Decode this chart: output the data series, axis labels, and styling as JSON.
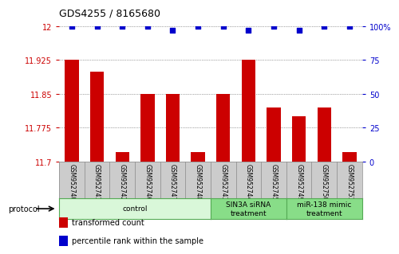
{
  "title": "GDS4255 / 8165680",
  "samples": [
    "GSM952740",
    "GSM952741",
    "GSM952742",
    "GSM952746",
    "GSM952747",
    "GSM952748",
    "GSM952743",
    "GSM952744",
    "GSM952745",
    "GSM952749",
    "GSM952750",
    "GSM952751"
  ],
  "transformed_counts": [
    11.925,
    11.9,
    11.72,
    11.85,
    11.85,
    11.72,
    11.85,
    11.925,
    11.82,
    11.8,
    11.82,
    11.72
  ],
  "percentile_ranks": [
    100,
    100,
    100,
    100,
    97,
    100,
    100,
    97,
    100,
    97,
    100,
    100
  ],
  "groups": [
    {
      "label": "control",
      "start": 0,
      "end": 6,
      "color": "#d9f7d9",
      "edge_color": "#55aa55"
    },
    {
      "label": "SIN3A siRNA\ntreatment",
      "start": 6,
      "end": 9,
      "color": "#88dd88",
      "edge_color": "#55aa55"
    },
    {
      "label": "miR-138 mimic\ntreatment",
      "start": 9,
      "end": 12,
      "color": "#88dd88",
      "edge_color": "#55aa55"
    }
  ],
  "ylim_left": [
    11.7,
    12.0
  ],
  "yticks_left": [
    11.7,
    11.775,
    11.85,
    11.925,
    12.0
  ],
  "yticklabels_left": [
    "11.7",
    "11.775",
    "11.85",
    "11.925",
    "12"
  ],
  "ylim_right": [
    0,
    100
  ],
  "yticks_right": [
    0,
    25,
    50,
    75,
    100
  ],
  "yticklabels_right": [
    "0",
    "25",
    "50",
    "75",
    "100%"
  ],
  "bar_color": "#cc0000",
  "dot_color": "#0000cc",
  "dot_size": 18,
  "bar_width": 0.55,
  "grid_color": "#555555",
  "bg_color": "#ffffff",
  "left_tick_color": "#cc0000",
  "right_tick_color": "#0000cc",
  "legend_items": [
    {
      "label": "transformed count",
      "color": "#cc0000"
    },
    {
      "label": "percentile rank within the sample",
      "color": "#0000cc"
    }
  ],
  "protocol_label": "protocol"
}
